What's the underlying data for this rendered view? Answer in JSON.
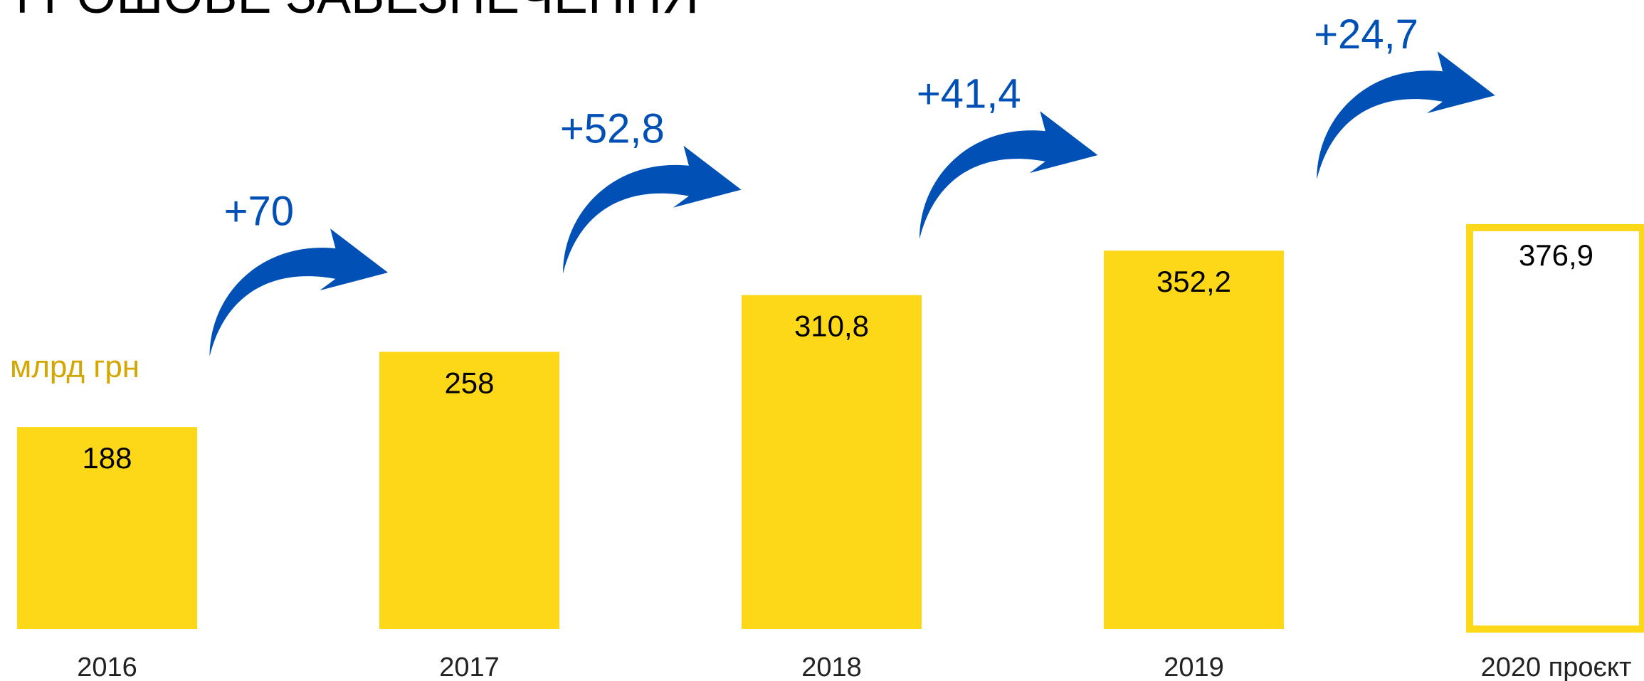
{
  "chart_data": {
    "type": "bar",
    "title": "ГРОШОВЕ ЗАБЕЗПЕЧЕННЯ",
    "unit_label": "млрд грн",
    "categories": [
      "2016",
      "2017",
      "2018",
      "2019",
      "2020 проєкт"
    ],
    "values": [
      188,
      258,
      310.8,
      352.2,
      376.9
    ],
    "value_labels": [
      "188",
      "258",
      "310,8",
      "352,2",
      "376,9"
    ],
    "color": "#fdd819",
    "outline": [
      false,
      false,
      false,
      false,
      true
    ],
    "increments": {
      "values": [
        70,
        52.8,
        41.4,
        24.7
      ],
      "value_labels": [
        "+70",
        "+52,8",
        "+41,4",
        "+24,7"
      ],
      "color": "#0050b5"
    }
  }
}
